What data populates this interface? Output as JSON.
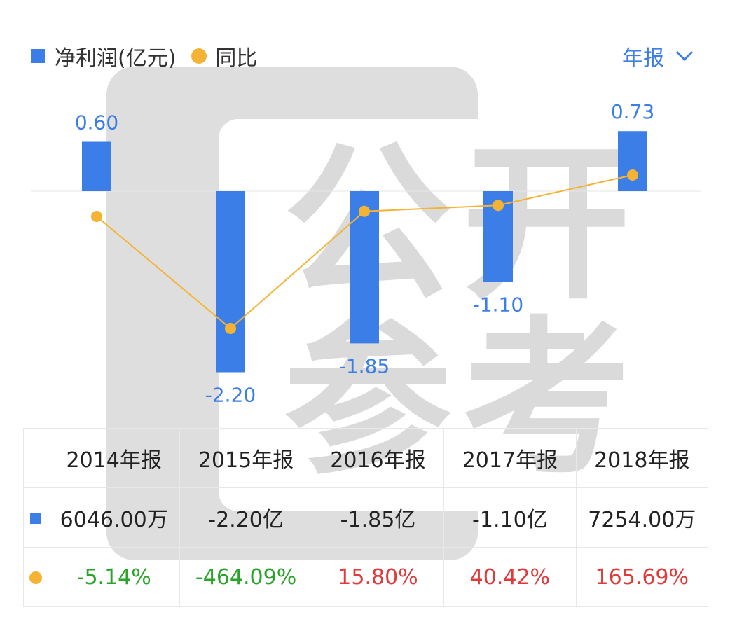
{
  "legend": {
    "bar_label": "净利润(亿元)",
    "line_label": "同比",
    "bar_icon": "square-icon",
    "line_icon": "dot-icon"
  },
  "period_selector": {
    "label": "年报",
    "icon": "chevron-down-icon"
  },
  "watermark": {
    "char1": "公",
    "char2": "开",
    "char3": "参",
    "char4": "考"
  },
  "colors": {
    "bar": "#3b7ee8",
    "line": "#f5b335",
    "accent_text": "#3b7ee8",
    "positive": "#e03a3a",
    "negative": "#2aa52a"
  },
  "chart_data": {
    "type": "bar",
    "categories": [
      "2014年报",
      "2015年报",
      "2016年报",
      "2017年报",
      "2018年报"
    ],
    "series": [
      {
        "name": "净利润(亿元)",
        "type": "bar",
        "values": [
          0.6,
          -2.2,
          -1.85,
          -1.1,
          0.73
        ],
        "labels": [
          "0.60",
          "-2.20",
          "-1.85",
          "-1.10",
          "0.73"
        ]
      },
      {
        "name": "同比",
        "type": "line",
        "values": [
          -5.14,
          -464.09,
          15.8,
          40.42,
          165.69
        ]
      }
    ],
    "grid": false,
    "legend_position": "top-left"
  },
  "table": {
    "headers": [
      "2014年报",
      "2015年报",
      "2016年报",
      "2017年报",
      "2018年报"
    ],
    "profit_row": [
      "6046.00万",
      "-2.20亿",
      "-1.85亿",
      "-1.10亿",
      "7254.00万"
    ],
    "yoy_row": [
      "-5.14%",
      "-464.09%",
      "15.80%",
      "40.42%",
      "165.69%"
    ]
  }
}
